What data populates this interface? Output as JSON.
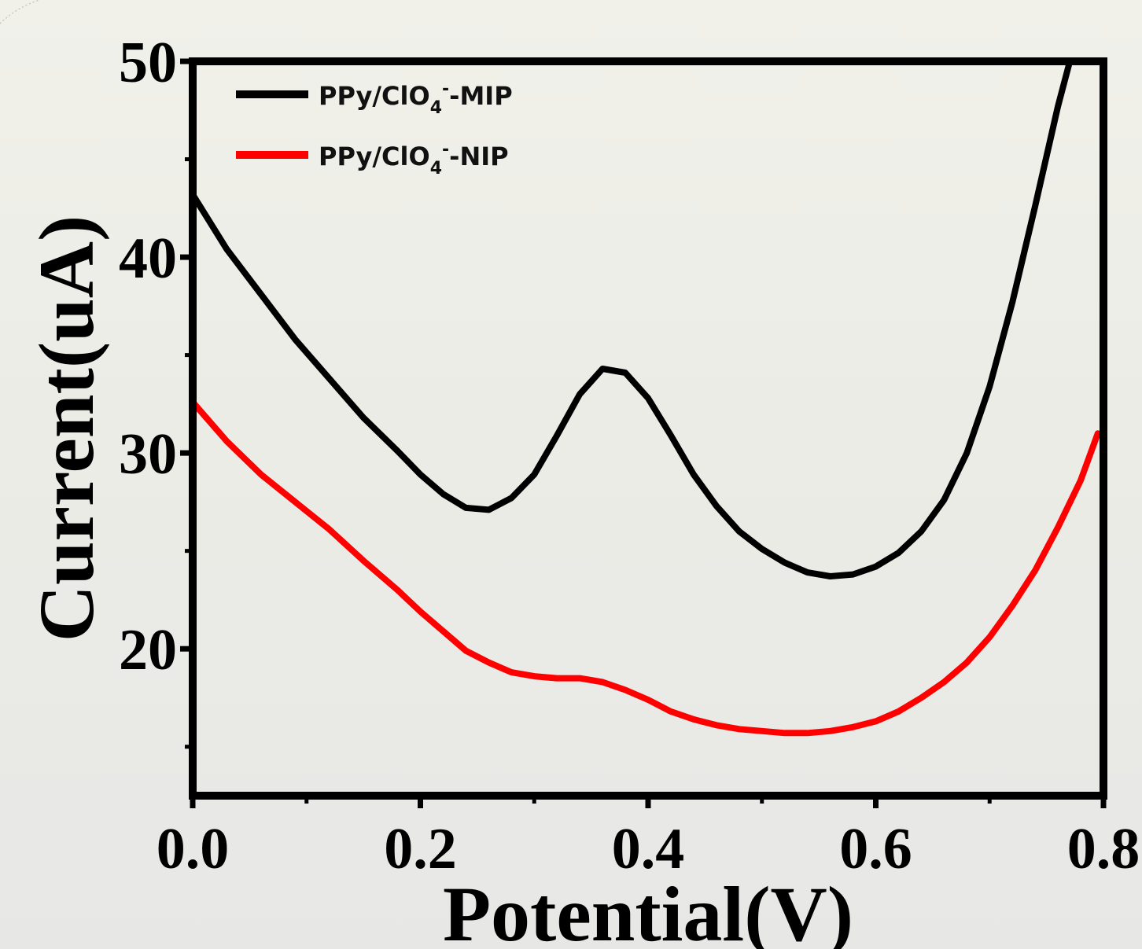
{
  "chart_data": {
    "type": "line",
    "xlabel": "Potential(V)",
    "ylabel": "Current(uA)",
    "xlim": [
      0.0,
      0.8
    ],
    "ylim": [
      12.5,
      50
    ],
    "x_ticks": [
      "0.0",
      "0.2",
      "0.4",
      "0.6",
      "0.8"
    ],
    "y_ticks": [
      "20",
      "30",
      "40",
      "50"
    ],
    "x_tick_values": [
      0.0,
      0.2,
      0.4,
      0.6,
      0.8
    ],
    "y_tick_values": [
      20,
      30,
      40,
      50
    ],
    "grid": false,
    "legend_position": "top-left",
    "series": [
      {
        "name": "PPy/ClO4- -MIP",
        "legend": {
          "prefix": "PPy/ClO",
          "sub": "4",
          "sup": "-",
          "suffix": "-MIP"
        },
        "color": "#000000",
        "points": [
          [
            0.0,
            43.2
          ],
          [
            0.03,
            40.4
          ],
          [
            0.06,
            38.1
          ],
          [
            0.09,
            35.8
          ],
          [
            0.12,
            33.8
          ],
          [
            0.15,
            31.8
          ],
          [
            0.18,
            30.1
          ],
          [
            0.2,
            28.9
          ],
          [
            0.22,
            27.9
          ],
          [
            0.24,
            27.2
          ],
          [
            0.26,
            27.1
          ],
          [
            0.28,
            27.7
          ],
          [
            0.3,
            28.9
          ],
          [
            0.32,
            30.9
          ],
          [
            0.34,
            33.0
          ],
          [
            0.36,
            34.3
          ],
          [
            0.38,
            34.1
          ],
          [
            0.4,
            32.8
          ],
          [
            0.42,
            30.9
          ],
          [
            0.44,
            28.9
          ],
          [
            0.46,
            27.3
          ],
          [
            0.48,
            26.0
          ],
          [
            0.5,
            25.1
          ],
          [
            0.52,
            24.4
          ],
          [
            0.54,
            23.9
          ],
          [
            0.56,
            23.7
          ],
          [
            0.58,
            23.8
          ],
          [
            0.6,
            24.2
          ],
          [
            0.62,
            24.9
          ],
          [
            0.64,
            26.0
          ],
          [
            0.66,
            27.6
          ],
          [
            0.68,
            30.0
          ],
          [
            0.7,
            33.4
          ],
          [
            0.72,
            37.7
          ],
          [
            0.74,
            42.6
          ],
          [
            0.76,
            47.7
          ],
          [
            0.775,
            51.0
          ]
        ]
      },
      {
        "name": "PPy/ClO4- -NIP",
        "legend": {
          "prefix": "PPy/ClO",
          "sub": "4",
          "sup": "-",
          "suffix": "-NIP"
        },
        "color": "#ff0000",
        "points": [
          [
            0.0,
            32.6
          ],
          [
            0.03,
            30.6
          ],
          [
            0.06,
            28.9
          ],
          [
            0.09,
            27.5
          ],
          [
            0.12,
            26.1
          ],
          [
            0.15,
            24.5
          ],
          [
            0.18,
            23.0
          ],
          [
            0.2,
            21.9
          ],
          [
            0.22,
            20.9
          ],
          [
            0.24,
            19.9
          ],
          [
            0.26,
            19.3
          ],
          [
            0.28,
            18.8
          ],
          [
            0.3,
            18.6
          ],
          [
            0.32,
            18.5
          ],
          [
            0.34,
            18.5
          ],
          [
            0.36,
            18.3
          ],
          [
            0.38,
            17.9
          ],
          [
            0.4,
            17.4
          ],
          [
            0.42,
            16.8
          ],
          [
            0.44,
            16.4
          ],
          [
            0.46,
            16.1
          ],
          [
            0.48,
            15.9
          ],
          [
            0.5,
            15.8
          ],
          [
            0.52,
            15.7
          ],
          [
            0.54,
            15.7
          ],
          [
            0.56,
            15.8
          ],
          [
            0.58,
            16.0
          ],
          [
            0.6,
            16.3
          ],
          [
            0.62,
            16.8
          ],
          [
            0.64,
            17.5
          ],
          [
            0.66,
            18.3
          ],
          [
            0.68,
            19.3
          ],
          [
            0.7,
            20.6
          ],
          [
            0.72,
            22.2
          ],
          [
            0.74,
            24.0
          ],
          [
            0.76,
            26.2
          ],
          [
            0.78,
            28.6
          ],
          [
            0.795,
            31.0
          ]
        ]
      }
    ]
  }
}
